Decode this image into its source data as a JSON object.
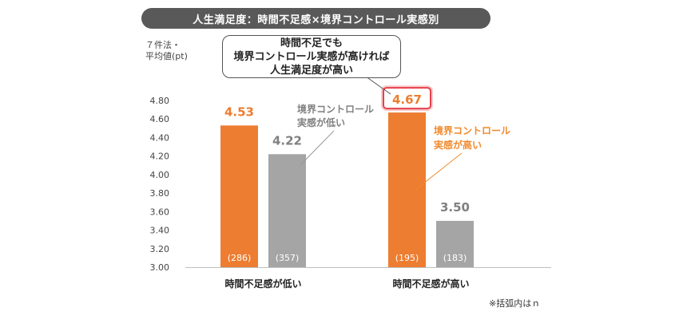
{
  "title": "人生満足度：時間不足感×境界コントロール実感別",
  "y_unit": [
    "７件法・",
    "平均値(pt)"
  ],
  "callout": [
    "時間不足でも",
    "境界コントロール実感が高ければ",
    "人生満足度が高い"
  ],
  "footnote": "※括弧内はｎ",
  "colors": {
    "orange": "#ED7D31",
    "gray": "#A5A5A5",
    "highlight": "#E8404A",
    "label_gray": "#808080",
    "label_orange": "#F08A2E"
  },
  "chart_data": {
    "type": "bar",
    "ylim": [
      3.0,
      4.8
    ],
    "y_ticks": [
      "3.00",
      "3.20",
      "3.40",
      "3.60",
      "3.80",
      "4.00",
      "4.20",
      "4.40",
      "4.60",
      "4.80"
    ],
    "categories": [
      "時間不足感が低い",
      "時間不足感が高い"
    ],
    "series": [
      {
        "values": [
          4.53,
          4.67
        ],
        "value_labels": [
          "4.53",
          "4.67"
        ],
        "n": [
          "(286)",
          "(195)"
        ]
      },
      {
        "values": [
          4.22,
          3.5
        ],
        "value_labels": [
          "4.22",
          "3.50"
        ],
        "n": [
          "(357)",
          "(183)"
        ]
      }
    ],
    "annotations": {
      "low_control": [
        "境界コントロール",
        "実感が低い"
      ],
      "high_control": [
        "境界コントロール",
        "実感が高い"
      ]
    }
  }
}
